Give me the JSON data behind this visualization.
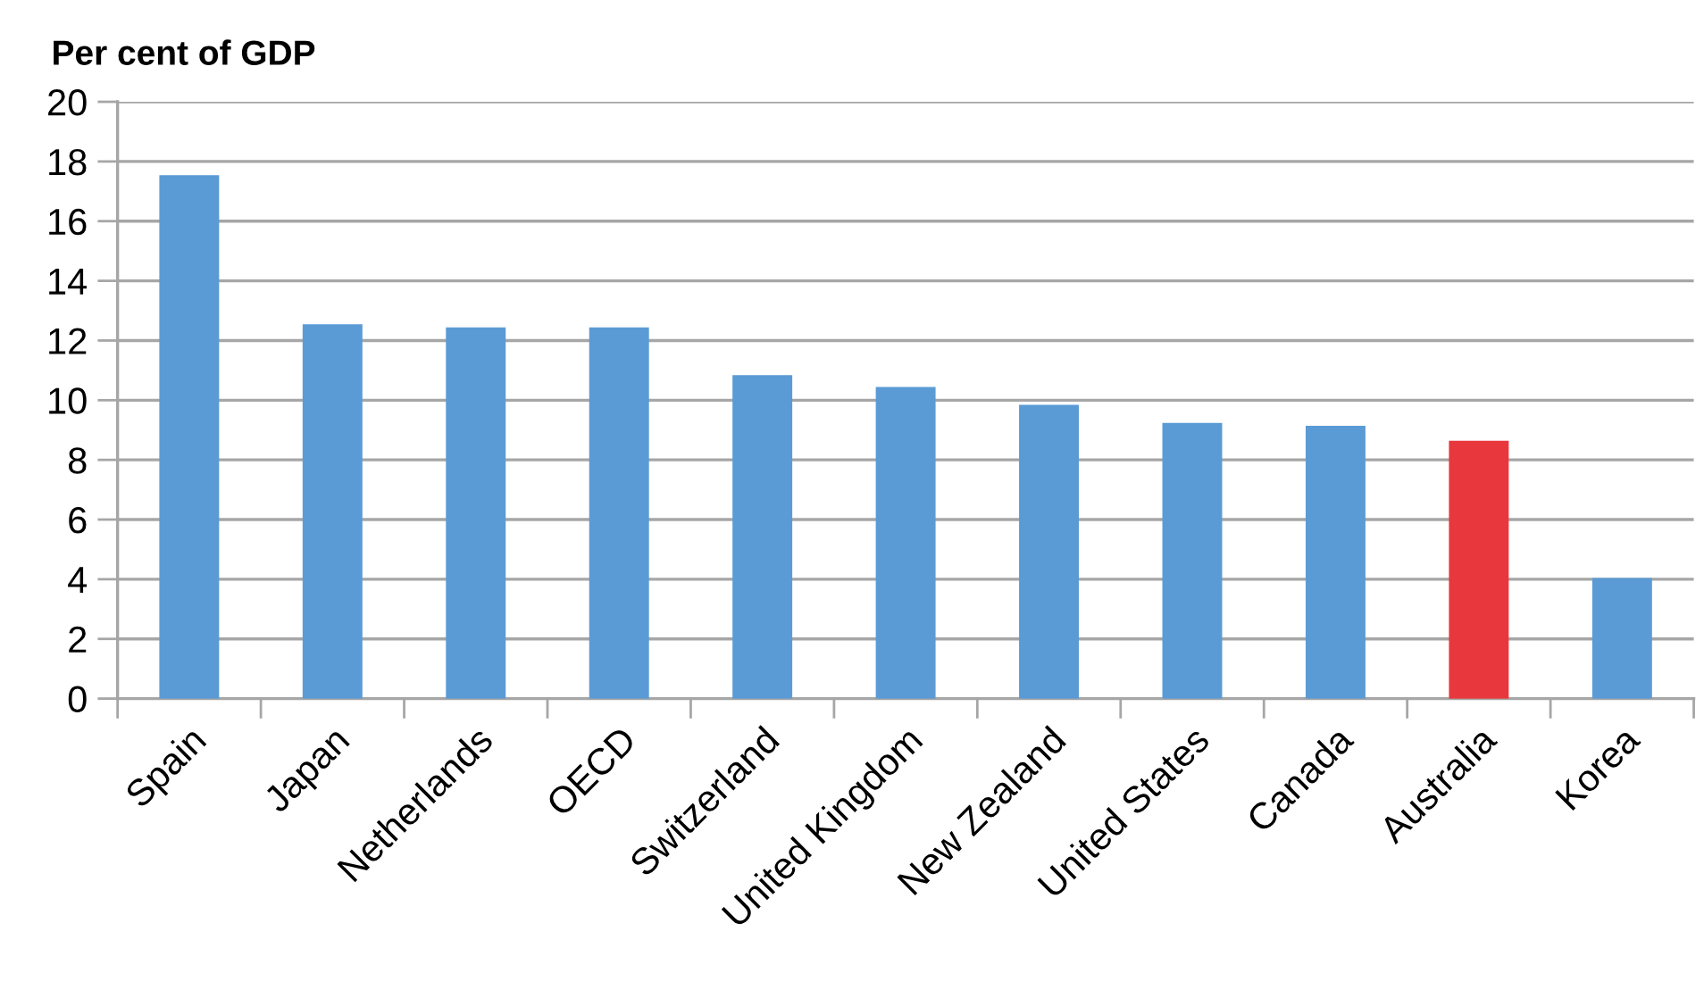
{
  "chart_data": {
    "type": "bar",
    "ylabel": "Per cent of GDP",
    "categories": [
      "Spain",
      "Japan",
      "Netherlands",
      "OECD",
      "Switzerland",
      "United Kingdom",
      "New Zealand",
      "United States",
      "Canada",
      "Australia",
      "Korea"
    ],
    "values": [
      17.5,
      12.5,
      12.4,
      12.4,
      10.8,
      10.4,
      9.8,
      9.2,
      9.1,
      8.6,
      4.0
    ],
    "colors": [
      "#5b9bd5",
      "#5b9bd5",
      "#5b9bd5",
      "#5b9bd5",
      "#5b9bd5",
      "#5b9bd5",
      "#5b9bd5",
      "#5b9bd5",
      "#5b9bd5",
      "#e8383d",
      "#5b9bd5"
    ],
    "ylim": [
      0,
      20
    ],
    "yticks": [
      0,
      2,
      4,
      6,
      8,
      10,
      12,
      14,
      16,
      18,
      20
    ],
    "grid": "y",
    "legend": false
  }
}
